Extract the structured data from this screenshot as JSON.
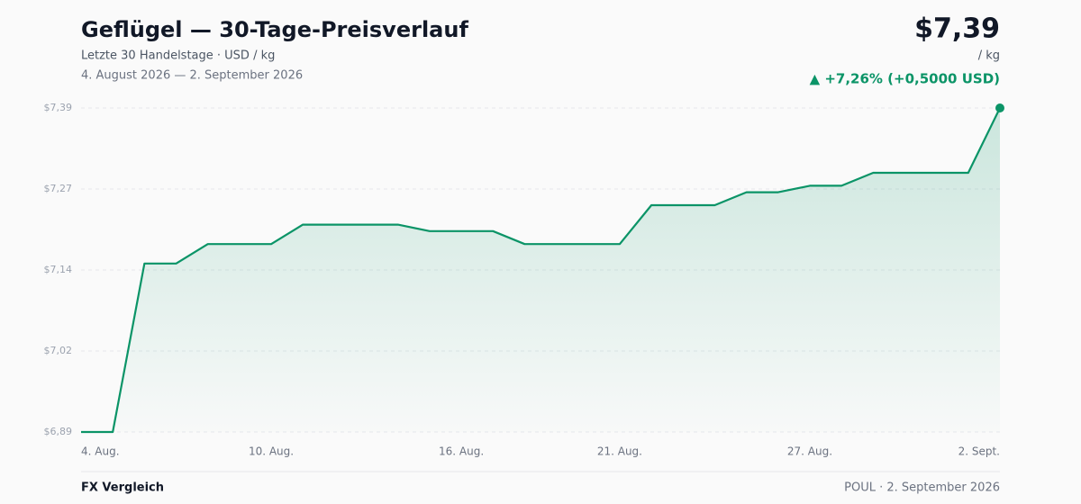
{
  "chart_data": {
    "type": "line",
    "title": "Geflügel — 30-Tage-Preisverlauf",
    "subtitle": "Letzte 30 Handelstage · USD / kg",
    "date_range": "4. August 2026 — 2. September 2026",
    "current_price": "$7,39",
    "unit": "/ kg",
    "change": "▲ +7,26% (+0,5000 USD)",
    "footer_left": "FX Vergleich",
    "footer_right": "POUL · 2. September 2026",
    "categories": [
      "4. Aug.",
      null,
      null,
      null,
      null,
      null,
      "10. Aug.",
      null,
      null,
      null,
      null,
      null,
      "16. Aug.",
      null,
      null,
      null,
      null,
      "21. Aug.",
      null,
      null,
      null,
      null,
      null,
      "27. Aug.",
      null,
      null,
      null,
      null,
      null,
      "2. Sept."
    ],
    "series": [
      {
        "name": "Geflügel",
        "color": "#0b9467",
        "values": [
          6.89,
          6.89,
          7.15,
          7.15,
          7.18,
          7.18,
          7.18,
          7.21,
          7.21,
          7.21,
          7.21,
          7.2,
          7.2,
          7.2,
          7.18,
          7.18,
          7.18,
          7.18,
          7.24,
          7.24,
          7.24,
          7.26,
          7.26,
          7.27,
          7.27,
          7.29,
          7.29,
          7.29,
          7.29,
          7.39
        ]
      }
    ],
    "ylim": [
      6.89,
      7.39
    ],
    "yticks": [
      {
        "value": 6.89,
        "label": "$6,89"
      },
      {
        "value": 7.015,
        "label": "$7,02"
      },
      {
        "value": 7.14,
        "label": "$7,14"
      },
      {
        "value": 7.265,
        "label": "$7,27"
      },
      {
        "value": 7.39,
        "label": "$7,39"
      }
    ],
    "grid": true
  }
}
